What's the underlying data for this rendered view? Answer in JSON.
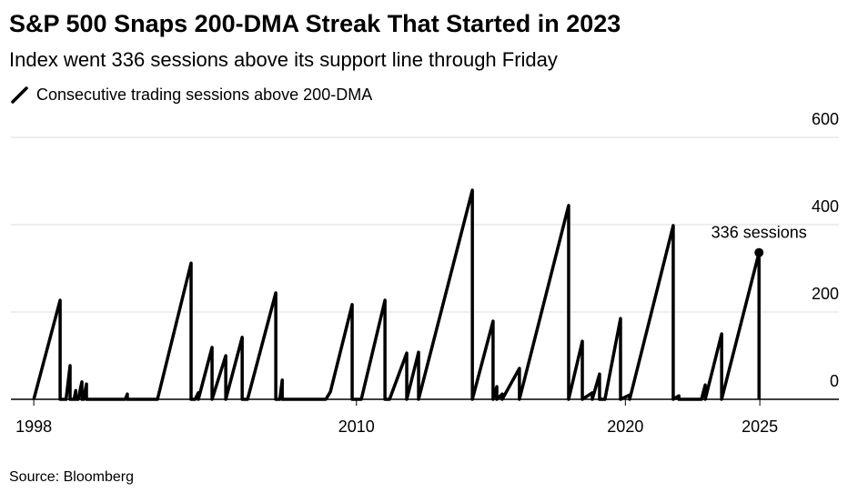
{
  "chart_data": {
    "type": "line",
    "title": "S&P 500 Snaps 200-DMA Streak That Started in 2023",
    "subtitle": "Index went 336 sessions above its support line through Friday",
    "source": "Source: Bloomberg",
    "annotation": "336 sessions",
    "x": [
      1998.0,
      1998.98,
      1998.98,
      1999.2,
      1999.35,
      1999.35,
      1999.5,
      1999.56,
      1999.56,
      1999.65,
      1999.79,
      1999.79,
      1999.85,
      1999.96,
      1999.96,
      2001.4,
      2001.48,
      2001.48,
      2002.6,
      2003.85,
      2003.85,
      2004.0,
      2004.12,
      2004.12,
      2004.63,
      2004.63,
      2005.14,
      2005.14,
      2005.75,
      2005.75,
      2005.95,
      2007.0,
      2007.0,
      2007.15,
      2007.24,
      2007.24,
      2008.86,
      2009.03,
      2009.84,
      2009.84,
      2010.18,
      2011.06,
      2011.06,
      2011.23,
      2011.87,
      2011.87,
      2012.31,
      2012.31,
      2014.31,
      2014.31,
      2015.08,
      2015.08,
      2015.22,
      2015.22,
      2015.42,
      2015.42,
      2016.06,
      2016.06,
      2017.89,
      2017.89,
      2018.4,
      2018.4,
      2018.77,
      2018.77,
      2019.04,
      2019.04,
      2019.24,
      2019.82,
      2019.82,
      2020.16,
      2020.16,
      2021.78,
      2021.78,
      2021.99,
      2021.99,
      2022.83,
      2022.97,
      2022.97,
      2023.58,
      2023.58,
      2024.97,
      2024.97
    ],
    "series": [
      {
        "name": "Consecutive trading sessions above 200-DMA",
        "color": "#000000",
        "values": [
          0,
          227,
          0,
          0,
          77,
          0,
          0,
          20,
          0,
          0,
          40,
          0,
          0,
          35,
          0,
          0,
          12,
          0,
          0,
          312,
          0,
          0,
          15,
          0,
          119,
          0,
          100,
          0,
          142,
          0,
          0,
          244,
          0,
          0,
          44,
          0,
          0,
          17,
          217,
          0,
          0,
          227,
          0,
          0,
          106,
          0,
          108,
          0,
          479,
          0,
          179,
          0,
          29,
          0,
          12,
          0,
          71,
          0,
          444,
          0,
          133,
          0,
          15,
          0,
          58,
          0,
          0,
          185,
          0,
          10,
          0,
          398,
          0,
          8,
          0,
          0,
          33,
          0,
          150,
          0,
          336,
          0
        ]
      }
    ],
    "annotation_index": 80,
    "xlim": [
      1997.15,
      2027.94
    ],
    "xticks": [
      1998,
      2010,
      2020,
      2025
    ],
    "ylim": [
      0,
      600
    ],
    "yticks": [
      0,
      200,
      400,
      600
    ],
    "grid": true
  }
}
